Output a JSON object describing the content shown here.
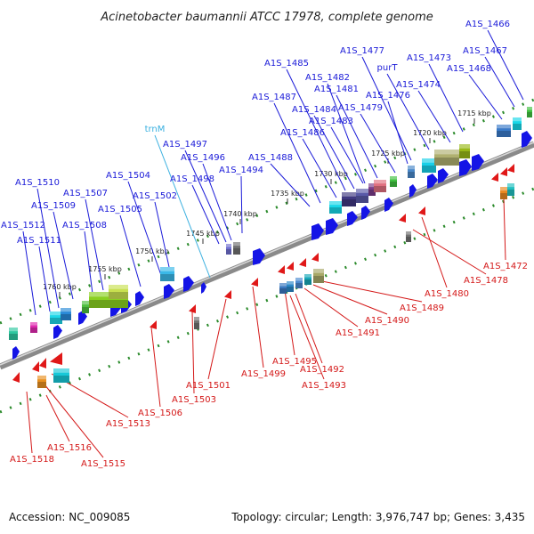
{
  "title": "Acinetobacter baumannii ATCC 17978, complete genome",
  "footer": {
    "accession": "Accession: NC_009085",
    "summary": "Topology: circular; Length: 3,976,747 bp; Genes: 3,435"
  },
  "colors": {
    "forward_label": "#1a1ad8",
    "reverse_label": "#d41818",
    "rrna_label": "#3ab0e0",
    "backbone": "#8c8c8c",
    "ruler": "#2a8a2a"
  },
  "ticks": [
    "1715 kbp",
    "1720 kbp",
    "1725 kbp",
    "1730 kbp",
    "1735 kbp",
    "1740 kbp",
    "1745 kbp",
    "1750 kbp",
    "1755 kbp",
    "1760 kbp"
  ],
  "forward_labels": [
    "A1S_1466",
    "A1S_1467",
    "A1S_1468",
    "A1S_1473",
    "A1S_1474",
    "purT",
    "A1S_1477",
    "A1S_1476",
    "A1S_1479",
    "A1S_1481",
    "A1S_1482",
    "A1S_1483",
    "A1S_1484",
    "A1S_1485",
    "A1S_1486",
    "A1S_1487",
    "A1S_1488",
    "A1S_1494",
    "A1S_1496",
    "A1S_1497",
    "A1S_1498",
    "trnM",
    "A1S_1502",
    "A1S_1504",
    "A1S_1505",
    "A1S_1507",
    "A1S_1508",
    "A1S_1509",
    "A1S_1510",
    "A1S_1511",
    "A1S_1512"
  ],
  "reverse_labels": [
    "A1S_1472",
    "A1S_1478",
    "A1S_1480",
    "A1S_1489",
    "A1S_1490",
    "A1S_1491",
    "A1S_1492",
    "A1S_1493",
    "A1S_1495",
    "A1S_1499",
    "A1S_1501",
    "A1S_1503",
    "A1S_1506",
    "A1S_1513",
    "A1S_1515",
    "A1S_1516",
    "A1S_1518"
  ]
}
